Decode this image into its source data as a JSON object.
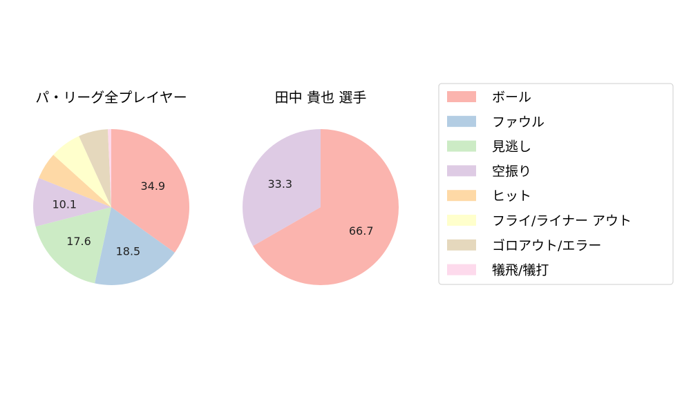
{
  "colors": {
    "ボール": "#fbb4ae",
    "ファウル": "#b3cde3",
    "見逃し": "#ccebc5",
    "空振り": "#decbe4",
    "ヒット": "#fed9a6",
    "フライ/ライナー アウト": "#ffffcc",
    "ゴロアウト/エラー": "#e5d8bd",
    "犠飛/犠打": "#fddaec"
  },
  "legend": {
    "entries": [
      "ボール",
      "ファウル",
      "見逃し",
      "空振り",
      "ヒット",
      "フライ/ライナー アウト",
      "ゴロアウト/エラー",
      "犠飛/犠打"
    ],
    "placement": "right"
  },
  "chart_data": [
    {
      "type": "pie",
      "title": "パ・リーグ全プレイヤー",
      "labels": [
        "ボール",
        "ファウル",
        "見逃し",
        "空振り",
        "ヒット",
        "フライ/ライナー アウト",
        "ゴロアウト/エラー",
        "犠飛/犠打"
      ],
      "values": [
        34.9,
        18.5,
        17.6,
        10.1,
        5.6,
        6.5,
        6.1,
        0.7
      ],
      "data_labels": [
        "34.9",
        "18.5",
        "17.6",
        "10.1",
        "",
        "",
        "",
        ""
      ],
      "start": "top",
      "direction": "clockwise"
    },
    {
      "type": "pie",
      "title": "田中 貴也  選手",
      "labels": [
        "ボール",
        "空振り"
      ],
      "values": [
        66.7,
        33.3
      ],
      "data_labels": [
        "66.7",
        "33.3"
      ],
      "start": "top",
      "direction": "clockwise"
    }
  ]
}
